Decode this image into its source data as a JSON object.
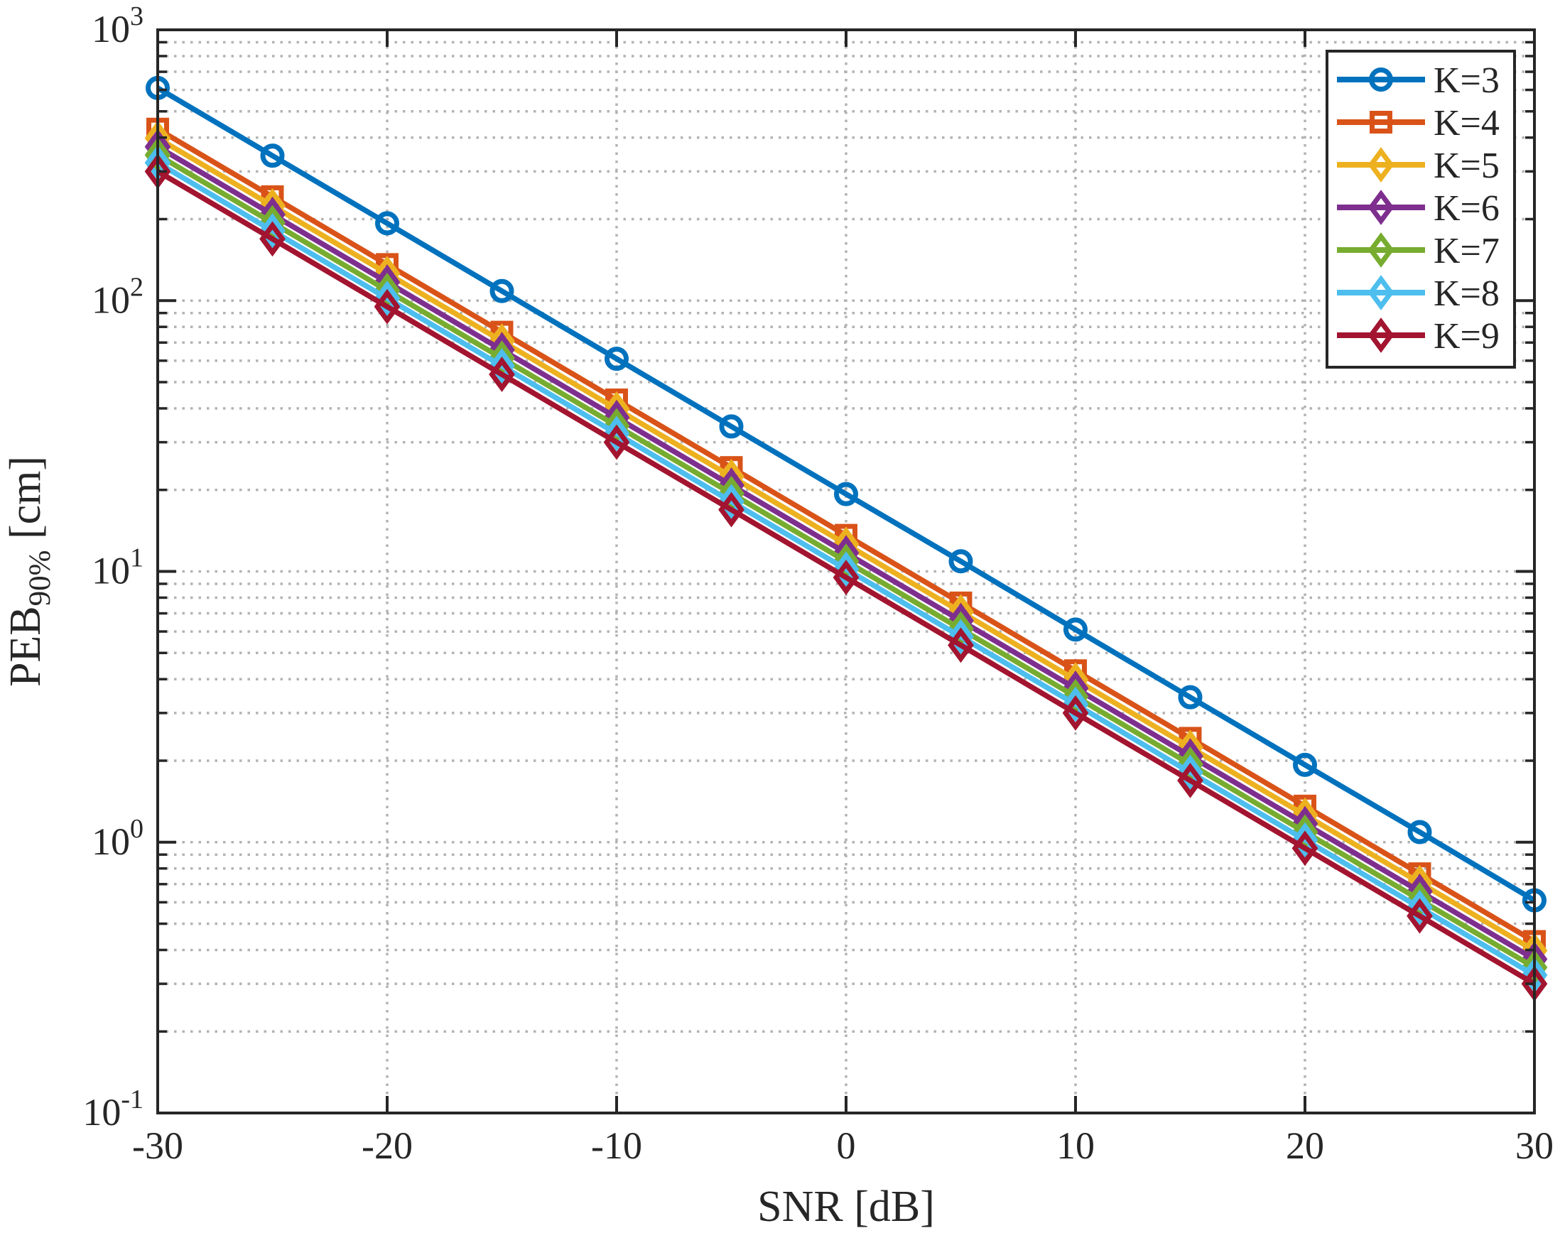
{
  "figure": {
    "background": "#ffffff"
  },
  "chart_data": {
    "type": "line",
    "title": "",
    "xlabel": "SNR [dB]",
    "ylabel_main": "PEB",
    "ylabel_subscript": "90%",
    "ylabel_unit": " [cm]",
    "x_scale": "linear",
    "y_scale": "log",
    "xlim": [
      -30,
      30
    ],
    "ylim": [
      0.1,
      1000
    ],
    "x_ticks": [
      -30,
      -20,
      -10,
      0,
      10,
      20,
      30
    ],
    "x_tick_labels": [
      "-30",
      "-20",
      "-10",
      "0",
      "10",
      "20",
      "30"
    ],
    "y_tick_exponents": [
      3,
      2,
      1,
      0,
      -1
    ],
    "y_tick_base": "10",
    "y_minor_mantissas": [
      2,
      3,
      4,
      5,
      6,
      7,
      8,
      9
    ],
    "grid": "dotted, major vertical every 10 dB, major+minor horizontal (log decades)",
    "legend_position": "northeast",
    "x": [
      -30,
      -25,
      -20,
      -15,
      -10,
      -5,
      0,
      5,
      10,
      15,
      20,
      25,
      30
    ],
    "series": [
      {
        "name": "K=3",
        "color": "#0072BD",
        "marker": "circle",
        "values": [
          610,
          343,
          193,
          108.5,
          61.0,
          34.3,
          19.3,
          10.9,
          6.1,
          3.43,
          1.93,
          1.09,
          0.61
        ]
      },
      {
        "name": "K=4",
        "color": "#D95319",
        "marker": "square",
        "values": [
          430,
          242,
          136,
          76.5,
          43.0,
          24.2,
          13.6,
          7.65,
          4.3,
          2.42,
          1.36,
          0.765,
          0.43
        ]
      },
      {
        "name": "K=5",
        "color": "#EDB120",
        "marker": "diamond",
        "values": [
          398,
          224,
          126,
          70.9,
          39.8,
          22.4,
          12.6,
          7.09,
          3.98,
          2.24,
          1.26,
          0.709,
          0.398
        ]
      },
      {
        "name": "K=6",
        "color": "#7E2F8E",
        "marker": "diamond",
        "values": [
          370,
          208,
          117,
          65.8,
          37.0,
          20.8,
          11.7,
          6.58,
          3.7,
          2.08,
          1.17,
          0.658,
          0.37
        ]
      },
      {
        "name": "K=7",
        "color": "#77AC30",
        "marker": "diamond",
        "values": [
          345,
          194,
          109,
          61.3,
          34.5,
          19.4,
          10.9,
          6.13,
          3.45,
          1.94,
          1.09,
          0.613,
          0.345
        ]
      },
      {
        "name": "K=8",
        "color": "#4DBEEE",
        "marker": "diamond",
        "values": [
          323,
          181,
          102,
          57.4,
          32.3,
          18.1,
          10.2,
          5.74,
          3.23,
          1.81,
          1.02,
          0.574,
          0.323
        ]
      },
      {
        "name": "K=9",
        "color": "#A2142F",
        "marker": "diamond",
        "values": [
          300,
          169,
          95.0,
          53.4,
          30.0,
          16.9,
          9.5,
          5.34,
          3.0,
          1.69,
          0.95,
          0.534,
          0.3
        ]
      }
    ],
    "colors": {
      "axis": "#262626",
      "grid": "#b3b3b3",
      "legend_border": "#262626",
      "legend_background": "#ffffff",
      "plot_background": "#ffffff"
    }
  }
}
